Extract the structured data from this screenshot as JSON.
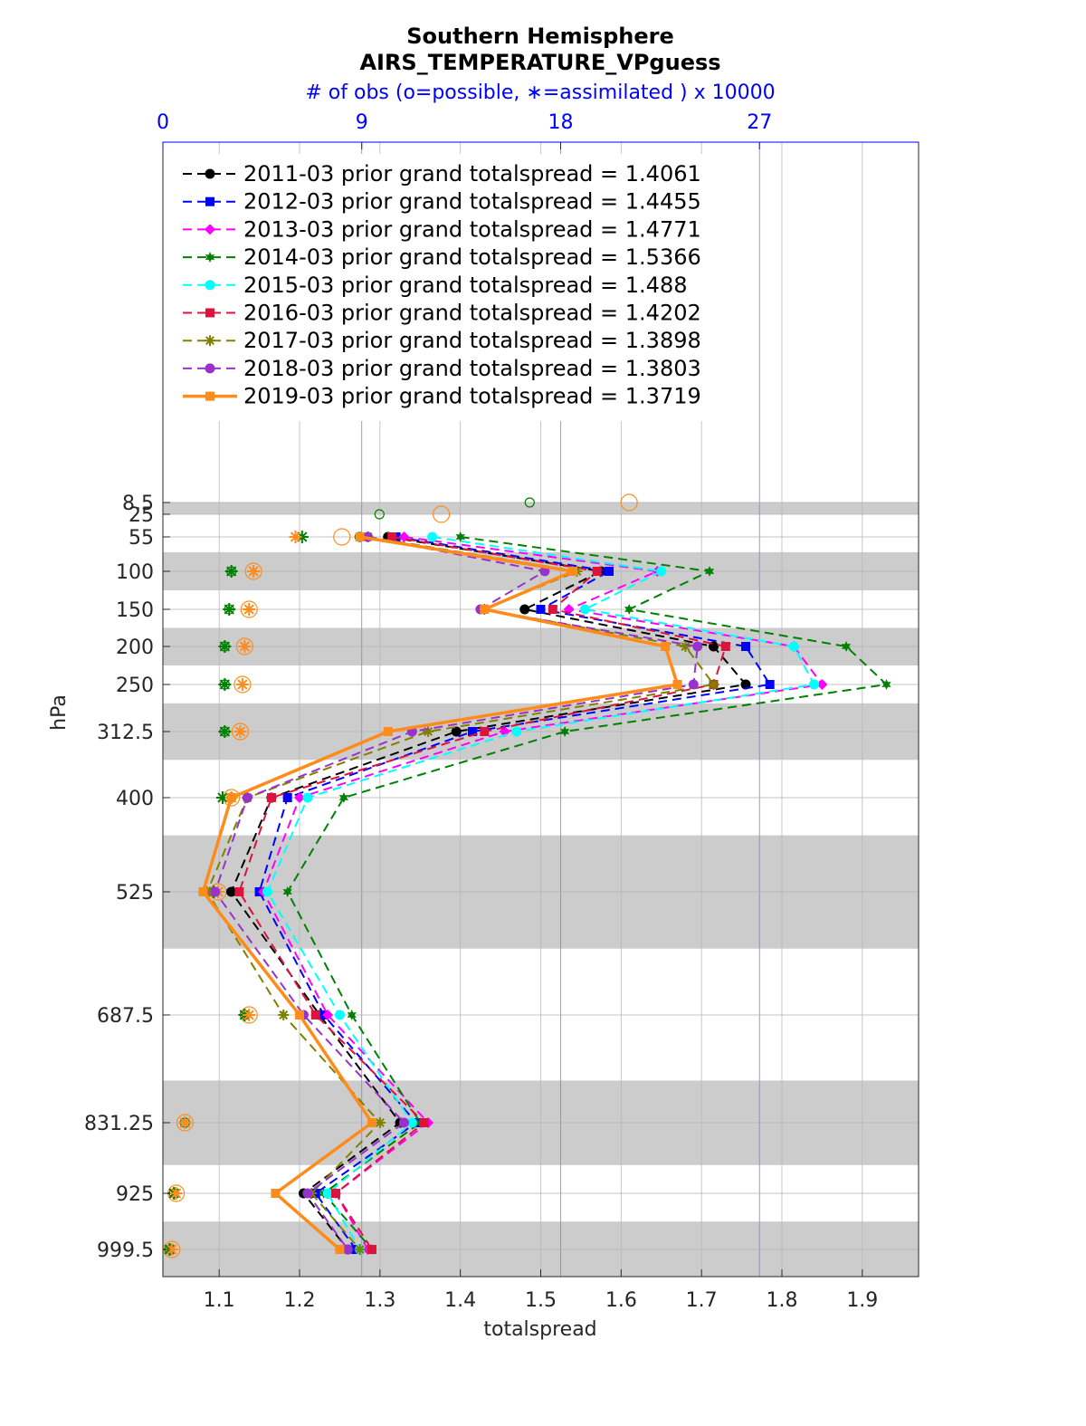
{
  "chart_data": {
    "type": "line",
    "title": "Southern Hemisphere",
    "subtitle": "AIRS_TEMPERATURE_VPguess",
    "top_axis_label": "# of obs (o=possible, ∗=assimilated ) x 10000",
    "top_axis_ticks": [
      "0",
      "9",
      "18",
      "27"
    ],
    "top_axis_range": [
      0,
      34.2
    ],
    "xlabel": "totalspread",
    "ylabel": "hPa",
    "xlim": [
      1.03,
      1.97
    ],
    "xticks": [
      "1.1",
      "1.2",
      "1.3",
      "1.4",
      "1.5",
      "1.6",
      "1.7",
      "1.8",
      "1.9"
    ],
    "y_levels": [
      "8.5",
      "25",
      "55",
      "100",
      "150",
      "200",
      "250",
      "312.5",
      "400",
      "525",
      "687.5",
      "831.25",
      "925",
      "999.5"
    ],
    "y_values": [
      8.5,
      25,
      55,
      100,
      150,
      200,
      250,
      312.5,
      400,
      525,
      687.5,
      831.25,
      925,
      999.5
    ],
    "ylim_note": "pressure axis, increasing downward",
    "shaded_layers": [
      [
        8.5,
        25
      ],
      [
        75,
        125
      ],
      [
        175,
        225
      ],
      [
        275,
        350
      ],
      [
        450,
        600
      ],
      [
        775,
        887.5
      ],
      [
        962.5,
        1037.5
      ]
    ],
    "grid": true,
    "legend_position": "top-left",
    "series": [
      {
        "name": "2011-03 prior grand totalspread = 1.4061",
        "color": "#000000",
        "marker": "circle",
        "line": "dashed",
        "values": [
          null,
          null,
          1.31,
          1.575,
          1.48,
          1.715,
          1.755,
          1.395,
          1.165,
          1.115,
          1.225,
          1.325,
          1.205,
          1.26
        ]
      },
      {
        "name": "2012-03 prior grand totalspread = 1.4455",
        "color": "#0000ff",
        "marker": "square",
        "line": "dashed",
        "values": [
          null,
          null,
          1.32,
          1.585,
          1.5,
          1.755,
          1.785,
          1.415,
          1.185,
          1.15,
          1.23,
          1.345,
          1.22,
          1.27
        ]
      },
      {
        "name": "2013-03 prior grand totalspread = 1.4771",
        "color": "#ff00ff",
        "marker": "diamond",
        "line": "dashed",
        "values": [
          null,
          null,
          1.33,
          1.645,
          1.535,
          1.815,
          1.85,
          1.455,
          1.2,
          1.155,
          1.235,
          1.36,
          1.245,
          1.285
        ]
      },
      {
        "name": "2014-03 prior grand totalspread = 1.5366",
        "color": "#008000",
        "marker": "hexagram",
        "line": "dashed",
        "values": [
          null,
          null,
          1.4,
          1.71,
          1.61,
          1.88,
          1.93,
          1.53,
          1.255,
          1.185,
          1.265,
          1.35,
          1.23,
          1.29
        ]
      },
      {
        "name": "2015-03 prior grand totalspread = 1.488",
        "color": "#00ffff",
        "marker": "circle",
        "line": "dashed",
        "values": [
          null,
          null,
          1.365,
          1.65,
          1.555,
          1.815,
          1.84,
          1.47,
          1.21,
          1.16,
          1.25,
          1.34,
          1.235,
          1.275
        ]
      },
      {
        "name": "2016-03 prior grand totalspread = 1.4202",
        "color": "#dc143c",
        "marker": "square",
        "line": "dashed",
        "values": [
          null,
          null,
          1.315,
          1.57,
          1.515,
          1.73,
          1.715,
          1.43,
          1.165,
          1.125,
          1.22,
          1.355,
          1.245,
          1.29
        ]
      },
      {
        "name": "2017-03 prior grand totalspread = 1.3898",
        "color": "#808000",
        "marker": "asterisk",
        "line": "dashed",
        "values": [
          null,
          null,
          1.285,
          1.545,
          1.43,
          1.68,
          1.715,
          1.36,
          1.135,
          1.085,
          1.18,
          1.3,
          1.215,
          1.275
        ]
      },
      {
        "name": "2018-03 prior grand totalspread = 1.3803",
        "color": "#9932cc",
        "marker": "circle",
        "line": "dashed",
        "values": [
          null,
          null,
          1.285,
          1.505,
          1.425,
          1.695,
          1.69,
          1.34,
          1.135,
          1.095,
          1.205,
          1.33,
          1.21,
          1.26
        ]
      },
      {
        "name": "2019-03 prior grand totalspread = 1.3719",
        "color": "#ff8c1a",
        "marker": "square",
        "line": "solid",
        "values": [
          null,
          null,
          1.275,
          1.54,
          1.43,
          1.655,
          1.67,
          1.31,
          1.115,
          1.08,
          1.2,
          1.29,
          1.17,
          1.25
        ]
      }
    ],
    "obs_counts_x10000": {
      "possible": [
        {
          "year": "2014-03",
          "values": [
            16.6,
            9.8,
            8.9,
            3.1,
            3.0,
            2.8,
            2.8,
            2.8,
            3.1,
            2.3,
            3.7,
            1.0,
            0.5,
            0.3
          ]
        },
        {
          "year": "2019-03",
          "values": [
            21.1,
            12.6,
            8.1,
            4.1,
            3.9,
            3.7,
            3.6,
            3.5,
            3.1,
            2.5,
            3.9,
            1.0,
            0.6,
            0.4
          ]
        }
      ],
      "assimilated": [
        {
          "year": "2014-03",
          "values": [
            0,
            0,
            6.3,
            3.1,
            3.0,
            2.8,
            2.8,
            2.8,
            2.7,
            2.3,
            3.7,
            1.0,
            0.5,
            0.3
          ]
        },
        {
          "year": "2019-03",
          "values": [
            0,
            0,
            6.0,
            4.1,
            3.9,
            3.7,
            3.6,
            3.5,
            3.1,
            2.5,
            3.9,
            1.0,
            0.6,
            0.4
          ]
        }
      ]
    }
  }
}
